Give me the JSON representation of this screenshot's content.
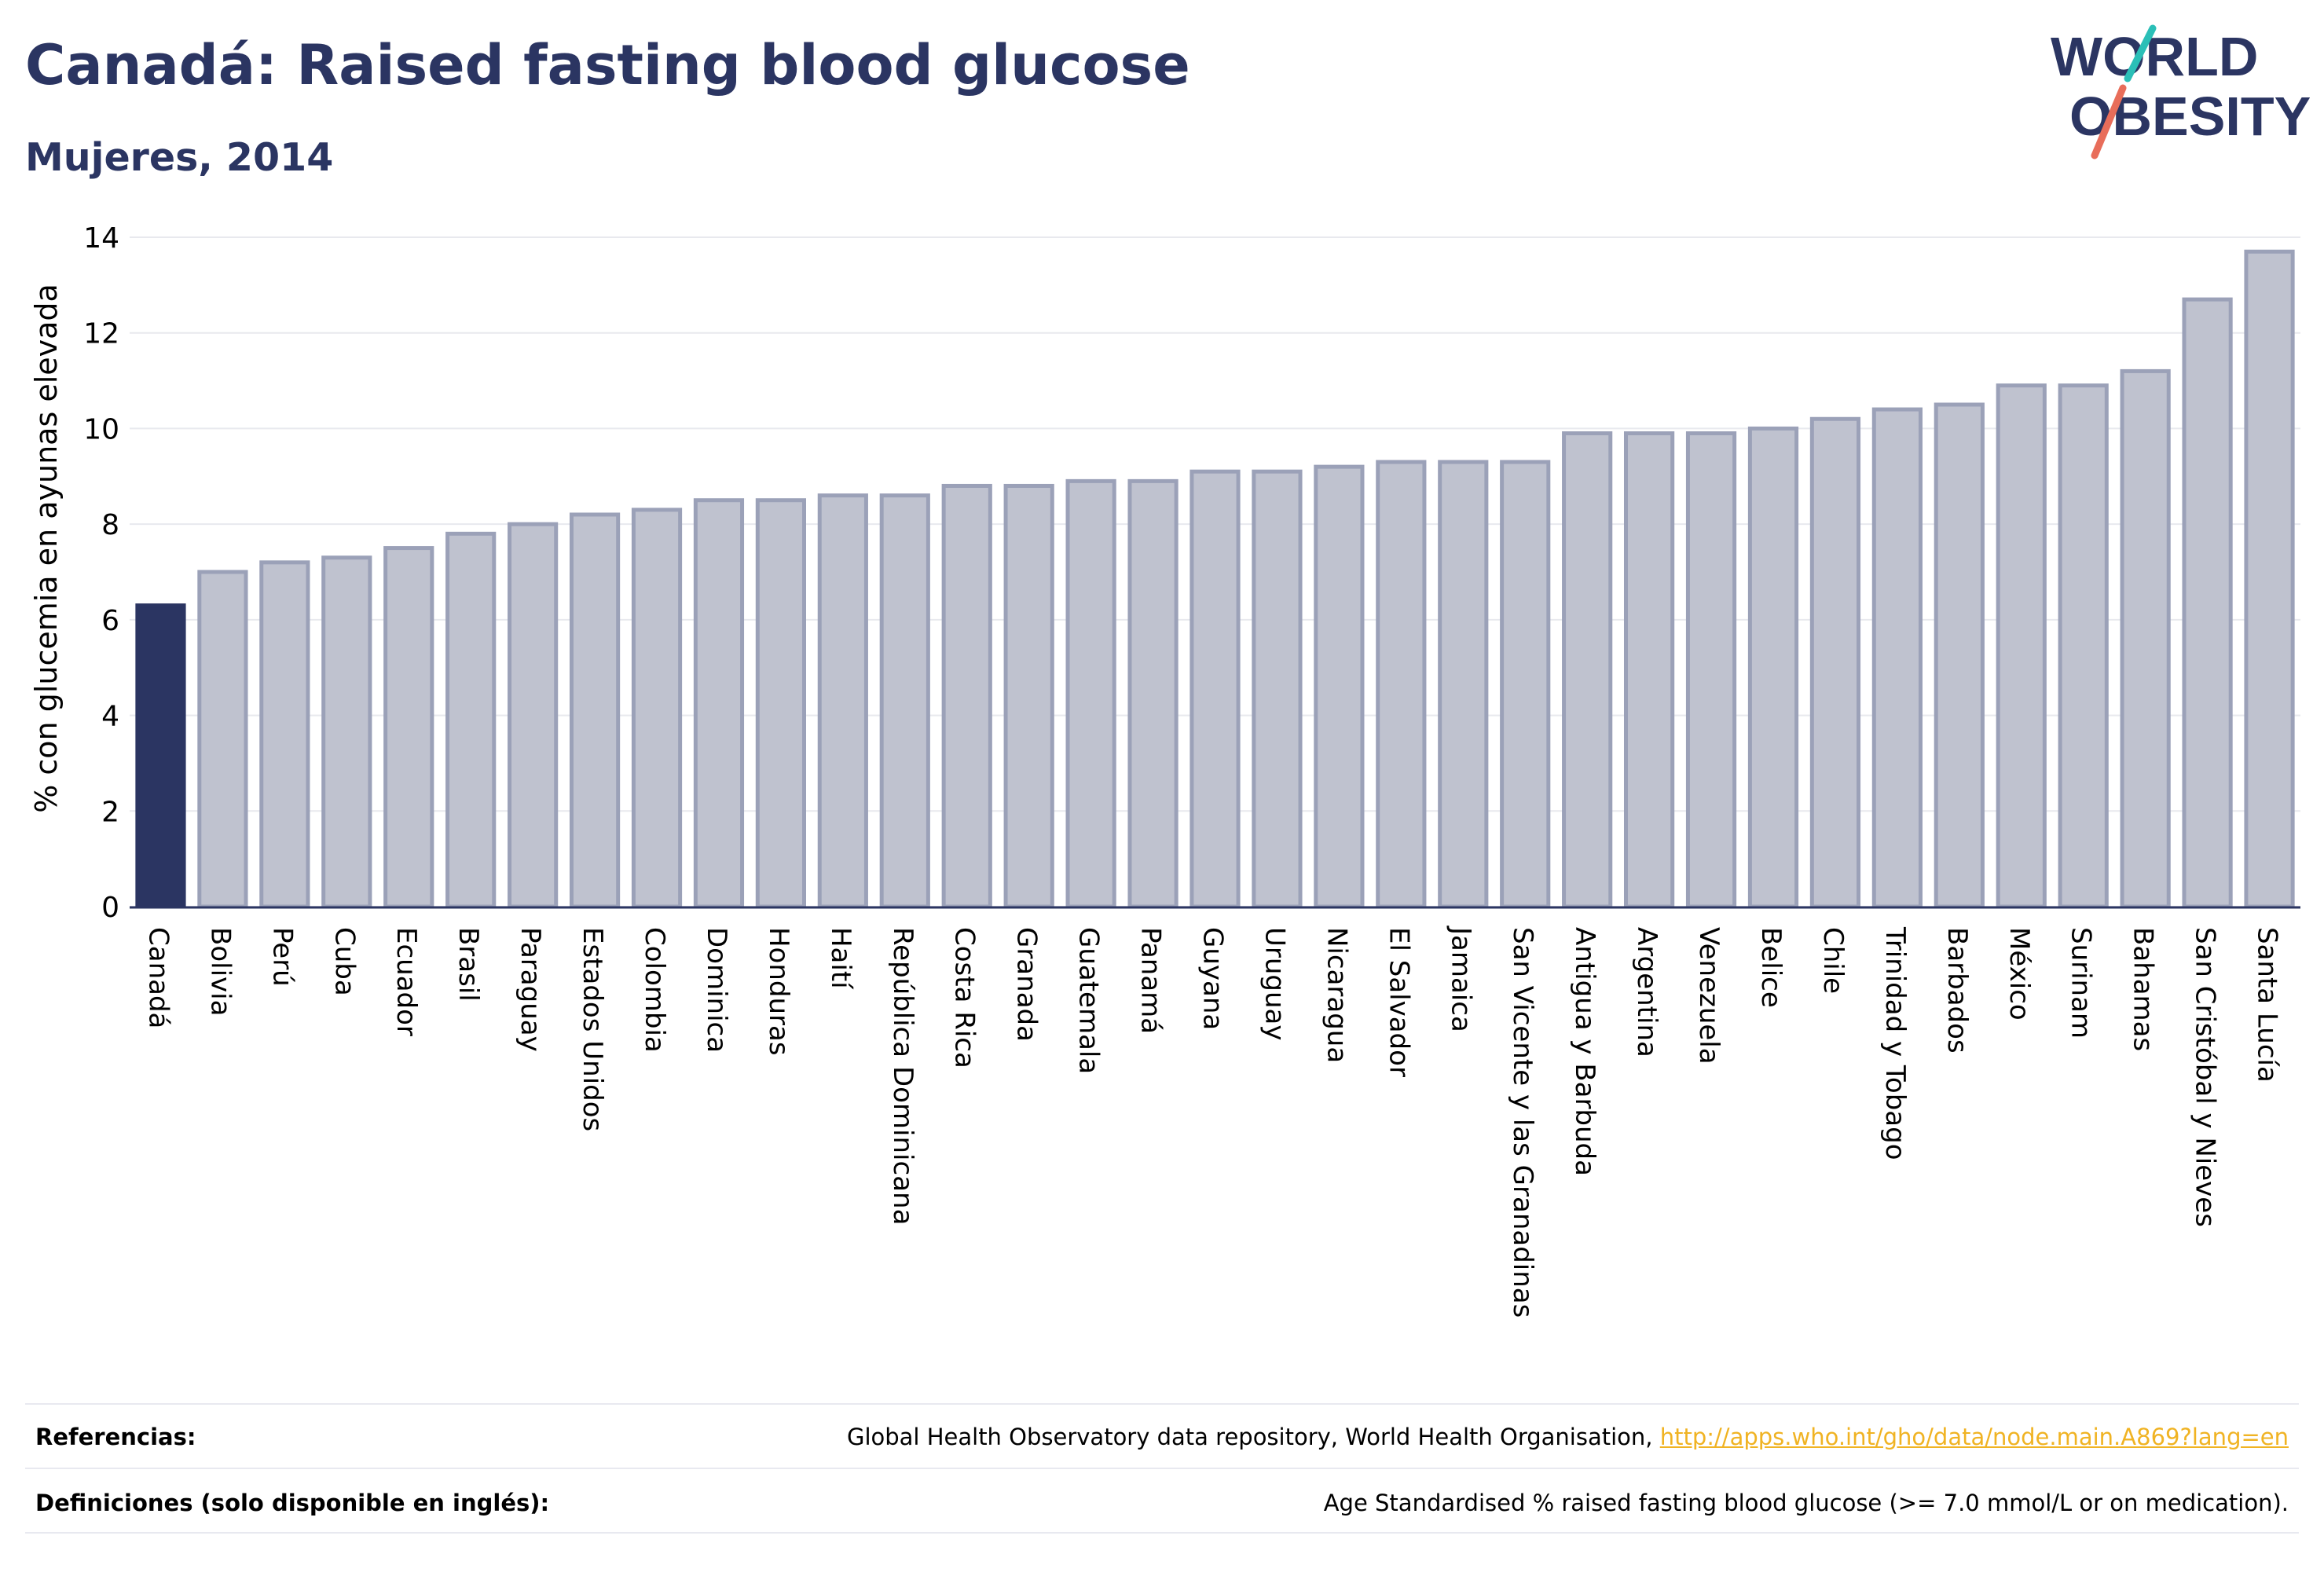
{
  "header": {
    "title": "Canadá: Raised fasting blood glucose",
    "subtitle": "Mujeres, 2014"
  },
  "logo": {
    "line1": "WORLD",
    "line2": "OBESITY"
  },
  "footer": {
    "references_label": "Referencias:",
    "references_text": "Global Health Observatory data repository, World Health Organisation, ",
    "references_link": "http://apps.who.int/gho/data/node.main.A869?lang=en",
    "definitions_label": "Definiciones (solo disponible en inglés):",
    "definitions_text": "Age Standardised % raised fasting blood glucose (>= 7.0 mmol/L or on medication)."
  },
  "colors": {
    "highlight": "#2b3562",
    "bar_fill": "#bfc2cf",
    "bar_stroke": "#9ba1b8",
    "grid": "#e8e9ee",
    "accent_teal": "#2bbfb7",
    "accent_coral": "#e86d5a"
  },
  "chart_data": {
    "type": "bar",
    "title": "Canadá: Raised fasting blood glucose",
    "subtitle": "Mujeres, 2014",
    "xlabel": "",
    "ylabel": "% con glucemia en ayunas elevada",
    "ylim": [
      0,
      14
    ],
    "yticks": [
      0,
      2,
      4,
      6,
      8,
      10,
      12,
      14
    ],
    "grid": true,
    "highlight": "Canadá",
    "categories": [
      "Canadá",
      "Bolivia",
      "Perú",
      "Cuba",
      "Ecuador",
      "Brasil",
      "Paraguay",
      "Estados Unidos",
      "Colombia",
      "Dominica",
      "Honduras",
      "Haití",
      "República Dominicana",
      "Costa Rica",
      "Granada",
      "Guatemala",
      "Panamá",
      "Guyana",
      "Uruguay",
      "Nicaragua",
      "El Salvador",
      "Jamaica",
      "San Vicente y las Granadinas",
      "Antigua y Barbuda",
      "Argentina",
      "Venezuela",
      "Belice",
      "Chile",
      "Trinidad y Tobago",
      "Barbados",
      "México",
      "Surinam",
      "Bahamas",
      "San Cristóbal y Nieves",
      "Santa Lucía"
    ],
    "values": [
      6.3,
      7.0,
      7.2,
      7.3,
      7.5,
      7.8,
      8.0,
      8.2,
      8.3,
      8.5,
      8.5,
      8.6,
      8.6,
      8.8,
      8.8,
      8.9,
      8.9,
      9.1,
      9.1,
      9.2,
      9.3,
      9.3,
      9.3,
      9.9,
      9.9,
      9.9,
      10.0,
      10.2,
      10.4,
      10.5,
      10.9,
      10.9,
      11.2,
      12.7,
      13.7
    ]
  }
}
